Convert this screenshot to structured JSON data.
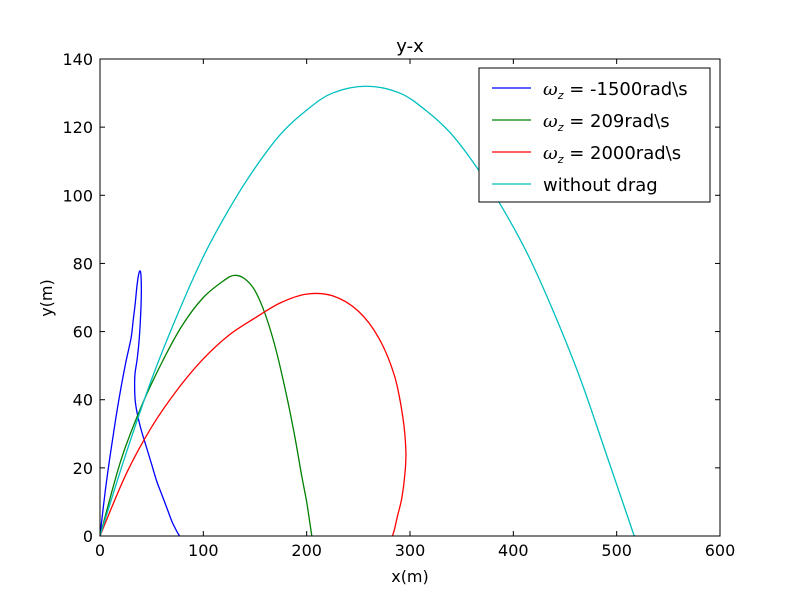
{
  "chart_data": {
    "type": "line",
    "title": "y-x",
    "xlabel": "x(m)",
    "ylabel": "y(m)",
    "xlim": [
      0,
      600
    ],
    "ylim": [
      0,
      140
    ],
    "xticks": [
      0,
      100,
      200,
      300,
      400,
      500,
      600
    ],
    "yticks": [
      0,
      20,
      40,
      60,
      80,
      100,
      120,
      140
    ],
    "grid": false,
    "legend_position": "top-right",
    "series": [
      {
        "name": "-1500rad\\s",
        "legend_symbol": "ω",
        "legend_subscript": "z",
        "legend_suffix": " = -1500rad\\s",
        "color": "#0000ff",
        "x": [
          0,
          5,
          10,
          15,
          20,
          25,
          30,
          32,
          34,
          36,
          38,
          39.5,
          40,
          39.5,
          38,
          36,
          34,
          33.5,
          34,
          36,
          40,
          45,
          50,
          55,
          60,
          65,
          70,
          75,
          77
        ],
        "y": [
          0,
          13,
          24,
          34,
          43,
          51,
          58,
          63,
          68,
          74,
          77.5,
          77,
          72,
          66,
          58,
          52,
          48,
          45,
          40,
          36,
          31,
          26,
          21,
          16,
          12,
          8,
          4,
          1,
          0
        ]
      },
      {
        "name": "209rad\\s",
        "legend_symbol": "ω",
        "legend_subscript": "z",
        "legend_suffix": " = 209rad\\s",
        "color": "#008000",
        "x": [
          0,
          20,
          40,
          60,
          80,
          100,
          120,
          130,
          140,
          150,
          160,
          170,
          180,
          188,
          195,
          200,
          203,
          205
        ],
        "y": [
          0,
          22,
          38,
          51,
          62,
          70,
          75,
          76.5,
          75.5,
          72,
          65,
          55,
          42,
          30,
          18,
          10,
          4,
          0
        ]
      },
      {
        "name": "2000rad\\s",
        "legend_symbol": "ω",
        "legend_subscript": "z",
        "legend_suffix": " = 2000rad\\s",
        "color": "#ff0000",
        "x": [
          0,
          25,
          50,
          75,
          100,
          125,
          150,
          175,
          200,
          225,
          250,
          270,
          285,
          293,
          296,
          295,
          292,
          288,
          285,
          283
        ],
        "y": [
          0,
          18,
          32,
          43,
          52,
          59,
          64,
          68.5,
          71,
          70.5,
          66,
          58,
          47,
          35,
          25,
          18,
          11,
          6,
          2,
          0
        ]
      },
      {
        "name": "without drag",
        "legend_symbol": "",
        "legend_subscript": "",
        "legend_suffix": "without drag",
        "color": "#00bfbf",
        "x": [
          0,
          25,
          50,
          75,
          100,
          125,
          150,
          175,
          200,
          225,
          258,
          290,
          315,
          340,
          365,
          390,
          415,
          440,
          465,
          490,
          517
        ],
        "y": [
          0,
          24,
          46,
          65,
          82,
          96,
          108,
          118,
          125,
          130,
          132,
          130,
          125,
          118,
          108,
          96,
          82,
          65,
          46,
          24,
          0
        ]
      }
    ]
  }
}
